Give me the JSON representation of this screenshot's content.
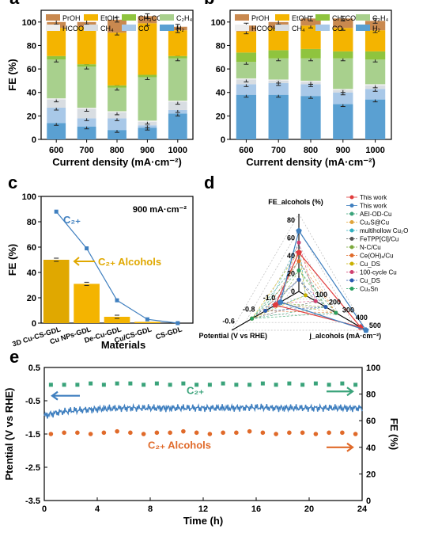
{
  "panel_labels": [
    "a",
    "b",
    "c",
    "d",
    "e"
  ],
  "chart_data": [
    {
      "panel": "a",
      "type": "bar",
      "stacked": true,
      "xlabel": "Current density (mA·cm⁻²)",
      "ylabel": "FE (%)",
      "ylim": [
        0,
        110
      ],
      "yticks": [
        0,
        20,
        40,
        60,
        80,
        100
      ],
      "categories": [
        "600",
        "700",
        "800",
        "900",
        "1000"
      ],
      "series": [
        {
          "name": "H₂",
          "color": "#5aa0d2",
          "values": [
            14,
            11,
            8,
            10,
            22
          ]
        },
        {
          "name": "CO",
          "color": "#a8c8e8",
          "values": [
            13,
            7,
            10,
            2,
            3
          ]
        },
        {
          "name": "CH₄",
          "color": "#d8dde2",
          "values": [
            7,
            8,
            5,
            3,
            7
          ]
        },
        {
          "name": "HCOOH",
          "color": "#eeeeee",
          "values": [
            1,
            1,
            1,
            1,
            1
          ]
        },
        {
          "name": "C₂H₄",
          "color": "#a8d08d",
          "values": [
            33,
            35,
            20,
            37,
            36
          ]
        },
        {
          "name": "CH₃COOH",
          "color": "#8fc43e",
          "values": [
            3,
            2,
            2,
            2,
            2
          ]
        },
        {
          "name": "EtOH",
          "color": "#f4b400",
          "values": [
            24,
            32,
            45,
            44,
            22
          ]
        },
        {
          "name": "PrOH",
          "color": "#c9894f",
          "values": [
            5,
            4,
            11,
            6,
            3
          ]
        }
      ],
      "legend_order": [
        "PrOH",
        "EtOH",
        "CH₃COOH",
        "C₂H₄",
        "HCOOH",
        "CH₄",
        "CO",
        "H₂"
      ],
      "legend_placement": "top"
    },
    {
      "panel": "b",
      "type": "bar",
      "stacked": true,
      "xlabel": "Current density (mA·cm⁻²)",
      "ylabel": "",
      "ylim": [
        0,
        110
      ],
      "yticks": [
        0,
        20,
        40,
        60,
        80,
        100
      ],
      "categories": [
        "600",
        "700",
        "800",
        "900",
        "1000"
      ],
      "series": [
        {
          "name": "H₂",
          "color": "#5aa0d2",
          "values": [
            38,
            38,
            37,
            30,
            34
          ]
        },
        {
          "name": "CO",
          "color": "#a8c8e8",
          "values": [
            9,
            10,
            10,
            10,
            9
          ]
        },
        {
          "name": "CH₄",
          "color": "#d8dde2",
          "values": [
            4,
            2,
            2,
            2,
            3
          ]
        },
        {
          "name": "HCOOH",
          "color": "#eeeeee",
          "values": [
            1,
            1,
            1,
            1,
            1
          ]
        },
        {
          "name": "C₂H₄",
          "color": "#a8d08d",
          "values": [
            14,
            18,
            19,
            26,
            21
          ]
        },
        {
          "name": "CH₃COOH",
          "color": "#8fc43e",
          "values": [
            8,
            7,
            8,
            6,
            7
          ]
        },
        {
          "name": "EtOH",
          "color": "#f4b400",
          "values": [
            18,
            19,
            20,
            20,
            18
          ]
        },
        {
          "name": "PrOH",
          "color": "#c9894f",
          "values": [
            5,
            5,
            6,
            8,
            8
          ]
        }
      ],
      "legend_order": [
        "PrOH",
        "EtOH",
        "CH₃COOH",
        "C₂H₄",
        "HCOOH",
        "CH₄",
        "CO",
        "H₂"
      ],
      "legend_placement": "top"
    },
    {
      "panel": "c",
      "type": "bar",
      "xlabel": "Materials",
      "ylabel": "FE (%)",
      "ylim": [
        0,
        100
      ],
      "yticks": [
        0,
        20,
        40,
        60,
        80,
        100
      ],
      "categories": [
        "3D Cu-CS-GDL",
        "Cu NPs-GDL",
        "De-Cu-GDL",
        "Cu/CS-GDL",
        "CS-GDL"
      ],
      "annotation": "900 mA·cm⁻²",
      "series": [
        {
          "name": "C₂₊ Alcohols",
          "color": "#f4b400",
          "values": [
            50,
            31,
            5,
            1,
            0
          ]
        },
        {
          "name": "C₂₊",
          "color": "#3f7fbf",
          "values": [
            88,
            59,
            18,
            3,
            0
          ]
        }
      ]
    },
    {
      "panel": "d",
      "type": "radar",
      "axes": [
        "FE_alcohols (%)",
        "j_alcohols (mA·cm⁻²)",
        "Potential (V vs RHE)"
      ],
      "fe_ticks": [
        0,
        20,
        40,
        60,
        80
      ],
      "j_ticks": [
        100,
        200,
        300,
        400,
        500
      ],
      "potential_ticks": [
        "-0.6",
        "-0.8",
        "-1.0"
      ],
      "legend": [
        "This work",
        "This work",
        "AEI-OD-Cu",
        "Cu₂S@Cu",
        "multihollow Cu₂O",
        "FeTPP[Cl]/Cu",
        "N-C/Cu",
        "Ce(OH)ₓ/Cu",
        "Cu_DS",
        "100-cycle Cu",
        "Cu_DS",
        "Cu₂Sn"
      ],
      "legend_colors": [
        "#e03c3c",
        "#3f7fbf",
        "#3aa37a",
        "#e0a43a",
        "#33b0c0",
        "#555555",
        "#7aa83a",
        "#e06a2a",
        "#c9b000",
        "#d04070",
        "#2a5ab0",
        "#2aa060"
      ],
      "points": [
        {
          "fe": 50,
          "j": 460,
          "p": -0.68
        },
        {
          "fe": 78,
          "j": 500,
          "p": -0.62
        }
      ]
    },
    {
      "panel": "e",
      "type": "line",
      "xlabel": "Time (h)",
      "ylabel": "Ptential (V vs RHE)",
      "y2label": "FE (%)",
      "xlim": [
        0,
        24
      ],
      "xticks": [
        0,
        4,
        8,
        12,
        16,
        20,
        24
      ],
      "ylim": [
        -3.5,
        0.5
      ],
      "yticks": [
        0.5,
        -0.5,
        -1.5,
        -2.5,
        -3.5
      ],
      "y2lim": [
        0,
        100
      ],
      "y2ticks": [
        0,
        20,
        40,
        60,
        80,
        100
      ],
      "series": [
        {
          "name": "Potential",
          "color": "#3f7fbf",
          "x": [
            0,
            1,
            2,
            4,
            6,
            8,
            10,
            12,
            14,
            16,
            18,
            20,
            22,
            24
          ],
          "y": [
            -0.95,
            -0.85,
            -0.8,
            -0.75,
            -0.72,
            -0.72,
            -0.72,
            -0.72,
            -0.72,
            -0.7,
            -0.72,
            -0.72,
            -0.72,
            -0.72
          ]
        },
        {
          "name": "C₂₊",
          "color": "#3aa37a",
          "x": [
            0.5,
            1.5,
            2.5,
            3.5,
            4.5,
            5.5,
            6.5,
            7.5,
            8.5,
            9.5,
            10.5,
            11.5,
            12.5,
            13.5,
            14.5,
            15.5,
            16.5,
            17.5,
            18.5,
            19.5,
            20.5,
            21.5,
            22.5,
            23.5
          ],
          "y2": [
            87,
            87,
            87,
            88,
            87,
            88,
            88,
            87,
            88,
            87,
            88,
            87,
            87,
            88,
            87,
            87,
            88,
            87,
            88,
            87,
            88,
            87,
            88,
            87
          ]
        },
        {
          "name": "C₂₊ Alcohols",
          "color": "#e06a2a",
          "x": [
            0.5,
            1.5,
            2.5,
            3.5,
            4.5,
            5.5,
            6.5,
            7.5,
            8.5,
            9.5,
            10.5,
            11.5,
            12.5,
            13.5,
            14.5,
            15.5,
            16.5,
            17.5,
            18.5,
            19.5,
            20.5,
            21.5,
            22.5,
            23.5
          ],
          "y2": [
            50,
            51,
            51,
            50,
            51,
            52,
            51,
            50,
            51,
            51,
            52,
            51,
            50,
            51,
            51,
            52,
            51,
            50,
            51,
            51,
            50,
            51,
            51,
            50
          ]
        }
      ]
    }
  ]
}
